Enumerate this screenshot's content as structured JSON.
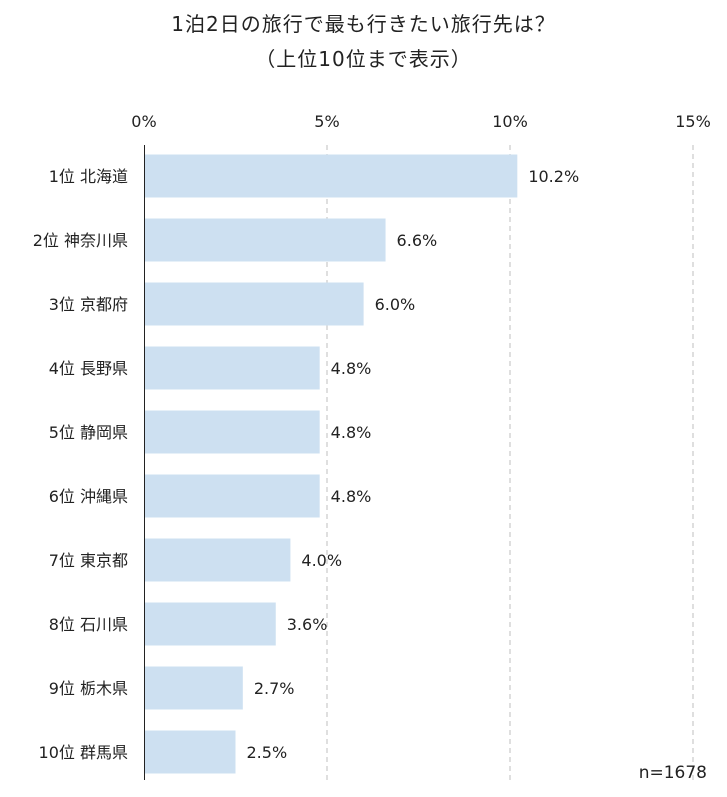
{
  "title_line1": "1泊2日の旅行で最も行きたい旅行先は？",
  "title_line2": "（上位10位まで表示）",
  "sample_size": "n=1678",
  "colors": {
    "bar": "#cde0f1",
    "axis": "#222222",
    "grid": "#bfbfbf"
  },
  "chart_data": {
    "type": "bar",
    "orientation": "horizontal",
    "title": "1泊2日の旅行で最も行きたい旅行先は？（上位10位まで表示）",
    "categories": [
      "1位 北海道",
      "2位 神奈川県",
      "3位 京都府",
      "4位 長野県",
      "5位 静岡県",
      "6位 沖縄県",
      "7位 東京都",
      "8位 石川県",
      "9位 栃木県",
      "10位 群馬県"
    ],
    "values": [
      10.2,
      6.6,
      6.0,
      4.8,
      4.8,
      4.8,
      4.0,
      3.6,
      2.7,
      2.5
    ],
    "value_labels": [
      "10.2%",
      "6.6%",
      "6.0%",
      "4.8%",
      "4.8%",
      "4.8%",
      "4.0%",
      "3.6%",
      "2.7%",
      "2.5%"
    ],
    "xlim": [
      0,
      15
    ],
    "x_ticks": [
      0,
      5,
      10,
      15
    ],
    "x_tick_labels": [
      "0%",
      "5%",
      "10%",
      "15%"
    ],
    "x_axis_position": "top",
    "grid": "vertical dashed",
    "legend": "none"
  }
}
